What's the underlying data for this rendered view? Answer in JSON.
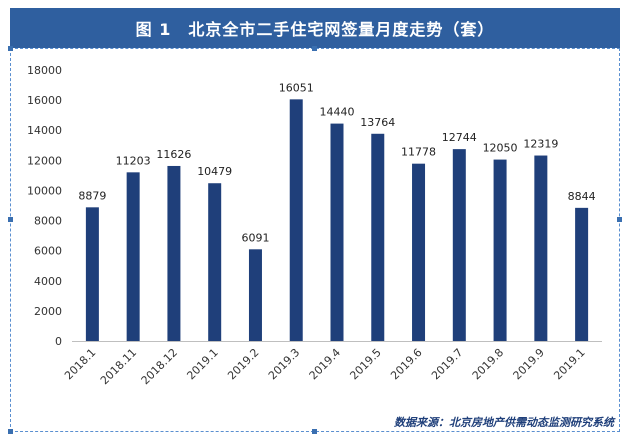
{
  "title": "图 1　北京全市二手住宅网签量月度走势（套）",
  "source": "数据来源：北京房地产供需动态监测研究系统",
  "colors": {
    "bar": "#1f3f7a",
    "title_bg": "#2f5f9f",
    "frame": "#5a8fd0"
  },
  "chart_data": {
    "type": "bar",
    "title": "图 1　北京全市二手住宅网签量月度走势（套）",
    "xlabel": "",
    "ylabel": "",
    "ylim": [
      0,
      18000
    ],
    "yticks": [
      0,
      2000,
      4000,
      6000,
      8000,
      10000,
      12000,
      14000,
      16000,
      18000
    ],
    "grid": false,
    "legend": "none",
    "categories": [
      "2018.1",
      "2018.11",
      "2018.12",
      "2019.1",
      "2019.2",
      "2019.3",
      "2019.4",
      "2019.5",
      "2019.6",
      "2019.7",
      "2019.8",
      "2019.9",
      "2019.1"
    ],
    "values": [
      8879,
      11203,
      11626,
      10479,
      6091,
      16051,
      14440,
      13764,
      11778,
      12744,
      12050,
      12319,
      8844
    ]
  }
}
